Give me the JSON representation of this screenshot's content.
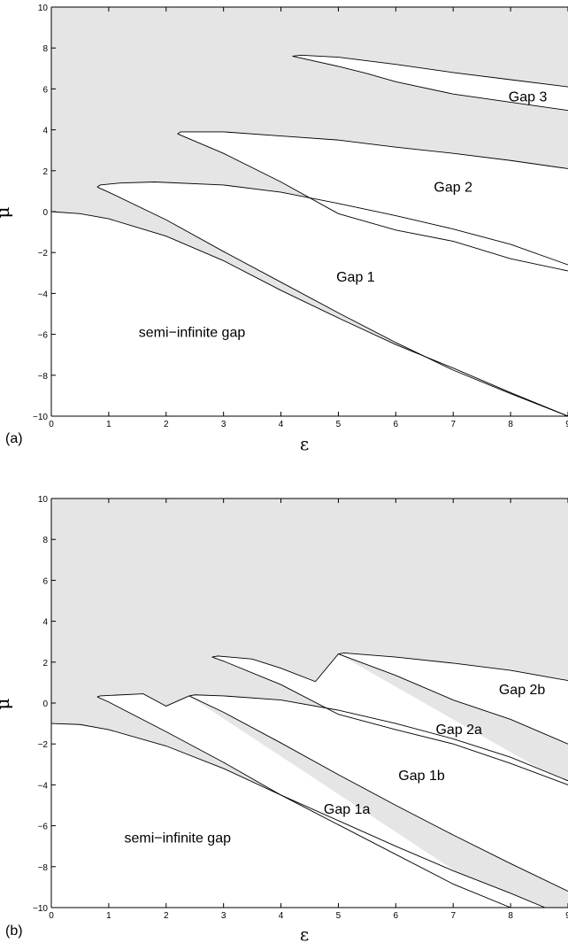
{
  "chart_data": [
    {
      "type": "area",
      "panel_label": "(a)",
      "xlabel": "ε",
      "ylabel": "μ",
      "xlim": [
        0,
        9
      ],
      "ylim": [
        -10,
        10
      ],
      "x_ticks": [
        "0",
        "1",
        "2",
        "3",
        "4",
        "5",
        "6",
        "7",
        "8",
        "9"
      ],
      "y_ticks": [
        "−10",
        "−8",
        "−6",
        "−4",
        "−2",
        "0",
        "2",
        "4",
        "6",
        "8",
        "10"
      ],
      "band_color": "#e5e5e5",
      "gap_color": "#ffffff",
      "bands": [
        {
          "lower": [
            [
              0,
              -10
            ],
            [
              9,
              -10
            ]
          ],
          "upper": [
            [
              0,
              0
            ],
            [
              0.5,
              -0.1
            ],
            [
              1,
              -0.35
            ],
            [
              2,
              -1.2
            ],
            [
              3,
              -2.4
            ],
            [
              4,
              -3.85
            ],
            [
              5,
              -5.2
            ],
            [
              6,
              -6.5
            ],
            [
              7,
              -7.65
            ],
            [
              8,
              -8.85
            ],
            [
              9,
              -10
            ]
          ]
        },
        {
          "lower": [
            [
              0.8,
              1.2
            ],
            [
              1,
              0.95
            ],
            [
              2,
              -0.4
            ],
            [
              3,
              -1.95
            ],
            [
              4,
              -3.45
            ],
            [
              5,
              -4.95
            ],
            [
              6,
              -6.4
            ],
            [
              7,
              -7.75
            ],
            [
              8,
              -8.9
            ],
            [
              9,
              -10
            ]
          ],
          "upper": [
            [
              0.8,
              1.2
            ],
            [
              0.85,
              1.3
            ],
            [
              1.2,
              1.4
            ],
            [
              1.8,
              1.45
            ],
            [
              3,
              1.3
            ],
            [
              4,
              0.95
            ],
            [
              5,
              0.4
            ],
            [
              6,
              -0.2
            ],
            [
              7,
              -0.85
            ],
            [
              8,
              -1.6
            ],
            [
              9,
              -2.6
            ]
          ]
        },
        {
          "lower": [
            [
              2.2,
              3.8
            ],
            [
              3,
              2.85
            ],
            [
              4,
              1.45
            ],
            [
              5,
              -0.1
            ],
            [
              6,
              -0.9
            ],
            [
              7,
              -1.45
            ],
            [
              8,
              -2.3
            ],
            [
              9,
              -2.9
            ]
          ],
          "upper": [
            [
              2.2,
              3.8
            ],
            [
              2.25,
              3.9
            ],
            [
              3,
              3.9
            ],
            [
              4,
              3.7
            ],
            [
              5,
              3.5
            ],
            [
              6,
              3.15
            ],
            [
              7,
              2.85
            ],
            [
              8,
              2.5
            ],
            [
              9,
              2.1
            ]
          ]
        },
        {
          "lower": [
            [
              4.2,
              7.6
            ],
            [
              5,
              7.1
            ],
            [
              5.5,
              6.75
            ],
            [
              6,
              6.35
            ],
            [
              7,
              5.75
            ],
            [
              8,
              5.35
            ],
            [
              9,
              4.95
            ]
          ],
          "upper": [
            [
              4.2,
              7.6
            ],
            [
              4.35,
              7.65
            ],
            [
              5,
              7.55
            ],
            [
              6,
              7.2
            ],
            [
              7,
              6.8
            ],
            [
              8,
              6.45
            ],
            [
              9,
              6.1
            ]
          ]
        }
      ],
      "annotations": [
        {
          "text": "semi−infinite gap",
          "x": 2.45,
          "y": -5.9
        },
        {
          "text": "Gap 1",
          "x": 5.3,
          "y": -3.2
        },
        {
          "text": "Gap 2",
          "x": 7.0,
          "y": 1.2
        },
        {
          "text": "Gap 3",
          "x": 8.3,
          "y": 5.6
        }
      ]
    },
    {
      "type": "area",
      "panel_label": "(b)",
      "xlabel": "ε",
      "ylabel": "μ",
      "xlim": [
        0,
        9
      ],
      "ylim": [
        -10,
        10
      ],
      "x_ticks": [
        "0",
        "1",
        "2",
        "3",
        "4",
        "5",
        "6",
        "7",
        "8",
        "9"
      ],
      "y_ticks": [
        "−10",
        "−8",
        "−6",
        "−4",
        "−2",
        "0",
        "2",
        "4",
        "6",
        "8",
        "10"
      ],
      "band_color": "#e5e5e5",
      "gap_color": "#ffffff",
      "bands": [
        {
          "lower": [
            [
              0,
              -10
            ],
            [
              9,
              -10
            ]
          ],
          "upper": [
            [
              0,
              -1
            ],
            [
              0.5,
              -1.05
            ],
            [
              1,
              -1.3
            ],
            [
              2,
              -2.1
            ],
            [
              3,
              -3.2
            ],
            [
              4,
              -4.5
            ],
            [
              5,
              -5.75
            ],
            [
              6,
              -7.0
            ],
            [
              7,
              -8.2
            ],
            [
              8,
              -9.3
            ],
            [
              8.6,
              -10
            ]
          ]
        },
        {
          "lower": [
            [
              0.8,
              0.3
            ],
            [
              1,
              0.05
            ],
            [
              2,
              -1.4
            ],
            [
              3,
              -2.9
            ],
            [
              4,
              -4.5
            ],
            [
              5,
              -5.95
            ],
            [
              6,
              -7.4
            ],
            [
              7,
              -8.85
            ],
            [
              8,
              -10
            ]
          ],
          "upper": [
            [
              0.8,
              0.3
            ],
            [
              0.85,
              0.35
            ],
            [
              1.6,
              0.45
            ],
            [
              2,
              -0.15
            ],
            [
              2.4,
              0.35
            ]
          ]
        },
        {
          "lower": [
            [
              2.4,
              0.35
            ],
            [
              3,
              -0.45
            ],
            [
              4,
              -1.95
            ],
            [
              5,
              -3.5
            ],
            [
              6,
              -5.0
            ],
            [
              7,
              -6.45
            ],
            [
              8,
              -7.85
            ],
            [
              9,
              -9.2
            ]
          ],
          "upper": [
            [
              2.4,
              0.35
            ],
            [
              2.5,
              0.4
            ],
            [
              3,
              0.35
            ],
            [
              4,
              0.15
            ],
            [
              5,
              -0.35
            ],
            [
              6,
              -1.0
            ],
            [
              7,
              -1.75
            ],
            [
              8,
              -2.65
            ],
            [
              9,
              -3.8
            ]
          ]
        },
        {
          "lower": [
            [
              2.8,
              2.25
            ],
            [
              3,
              2.05
            ],
            [
              4,
              0.9
            ],
            [
              5,
              -0.55
            ],
            [
              6,
              -1.3
            ],
            [
              7,
              -2.0
            ],
            [
              8,
              -2.95
            ],
            [
              9,
              -4.0
            ]
          ],
          "upper": [
            [
              2.8,
              2.25
            ],
            [
              2.9,
              2.3
            ],
            [
              3.5,
              2.15
            ],
            [
              4,
              1.7
            ],
            [
              4.6,
              1.05
            ],
            [
              5,
              2.4
            ]
          ]
        },
        {
          "lower": [
            [
              5,
              2.4
            ],
            [
              6,
              1.35
            ],
            [
              7,
              0.15
            ],
            [
              8,
              -0.8
            ],
            [
              9,
              -2.0
            ]
          ],
          "upper": [
            [
              5,
              2.4
            ],
            [
              5.1,
              2.45
            ],
            [
              6,
              2.25
            ],
            [
              7,
              1.95
            ],
            [
              8,
              1.6
            ],
            [
              9,
              1.1
            ]
          ]
        }
      ],
      "annotations": [
        {
          "text": "semi−infinite gap",
          "x": 2.2,
          "y": -6.6
        },
        {
          "text": "Gap 1a",
          "x": 5.15,
          "y": -5.2
        },
        {
          "text": "Gap 1b",
          "x": 6.45,
          "y": -3.55
        },
        {
          "text": "Gap 2a",
          "x": 7.1,
          "y": -1.3
        },
        {
          "text": "Gap 2b",
          "x": 8.2,
          "y": 0.65
        }
      ]
    }
  ]
}
